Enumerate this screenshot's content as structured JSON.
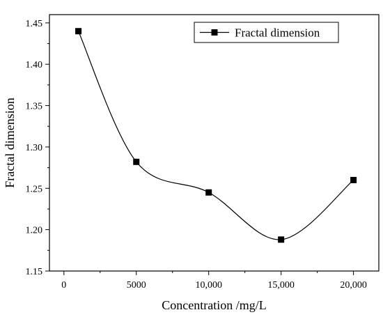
{
  "chart_data": {
    "type": "line",
    "smooth": true,
    "xlabel": "Concentration /mg/L",
    "ylabel": "Fractal dimension",
    "xlim": [
      -1000,
      21750
    ],
    "ylim": [
      1.15,
      1.46
    ],
    "x_ticks": [
      0,
      5000,
      10000,
      15000,
      20000
    ],
    "x_tick_labels": [
      "0",
      "5000",
      "10,000",
      "15,000",
      "20,000"
    ],
    "y_ticks": [
      1.15,
      1.2,
      1.25,
      1.3,
      1.35,
      1.4,
      1.45
    ],
    "y_tick_labels": [
      "1.15",
      "1.20",
      "1.25",
      "1.30",
      "1.35",
      "1.40",
      "1.45"
    ],
    "grid": false,
    "legend_position": "top-right",
    "series": [
      {
        "name": "Fractal dimension",
        "marker": "square",
        "color": "#000000",
        "x": [
          1000,
          5000,
          10000,
          15000,
          20000
        ],
        "y": [
          1.44,
          1.282,
          1.245,
          1.188,
          1.26
        ]
      }
    ]
  }
}
